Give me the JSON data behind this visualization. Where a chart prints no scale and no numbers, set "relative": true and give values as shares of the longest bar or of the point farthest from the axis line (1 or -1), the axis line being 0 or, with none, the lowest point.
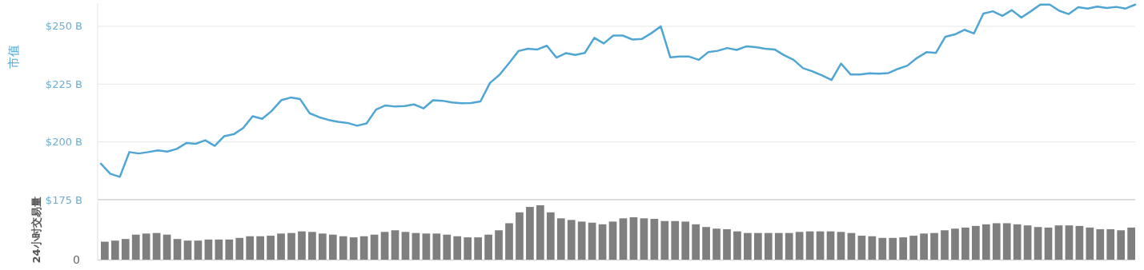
{
  "chart_data": [
    {
      "type": "line",
      "ylabel": "市值",
      "ylim": [
        175,
        260
      ],
      "yticks": [
        {
          "value": 175,
          "label": "$175 B"
        },
        {
          "value": 200,
          "label": "$200 B"
        },
        {
          "value": 225,
          "label": "$225 B"
        },
        {
          "value": 250,
          "label": "$250 B"
        }
      ],
      "grid": "y",
      "tick_labels": "y",
      "marker": "none",
      "line_style": "solid",
      "categories": [
        null,
        null,
        null,
        null,
        null,
        null,
        null,
        null,
        null,
        null,
        null,
        null,
        null,
        null,
        null,
        null,
        null,
        null,
        null,
        null,
        null,
        null,
        null,
        null,
        null,
        null,
        null,
        null,
        null,
        null,
        null,
        null,
        null,
        null,
        null,
        null,
        null,
        null,
        null,
        null,
        null,
        null,
        null,
        null,
        null,
        null,
        null,
        null,
        null,
        null,
        null,
        null,
        null,
        null,
        null,
        null,
        null,
        null,
        null,
        null,
        null,
        null,
        null,
        null,
        null,
        null,
        null,
        null,
        null,
        null,
        null,
        null,
        null,
        null,
        null,
        null,
        null,
        null,
        null,
        null,
        null,
        null,
        null,
        null,
        null,
        null,
        null,
        null,
        null,
        null,
        null,
        null,
        null,
        null,
        null,
        null,
        null,
        null,
        null,
        null,
        null,
        null,
        null,
        null,
        null,
        null,
        null,
        null,
        null,
        null
      ],
      "series": [
        {
          "color": "#4fa6d4",
          "values": [
            190.6,
            186.2,
            184.9,
            195.6,
            195,
            195.6,
            196.3,
            195.8,
            197,
            199.5,
            199.2,
            200.7,
            198.3,
            202.5,
            203.3,
            206,
            211.1,
            210,
            213.4,
            218,
            219.2,
            218.5,
            212.4,
            210.7,
            209.5,
            208.7,
            208.2,
            207,
            208,
            214,
            215.8,
            215.3,
            215.5,
            216.2,
            214.5,
            218,
            217.8,
            217.1,
            216.7,
            216.8,
            217.5,
            225.5,
            229,
            234,
            239.3,
            240.3,
            240,
            241.6,
            236.5,
            238.4,
            237.6,
            238.5,
            245,
            242.6,
            246,
            246,
            244.3,
            244.5,
            247,
            250,
            236.6,
            236.9,
            236.9,
            235.5,
            238.8,
            239.4,
            240.6,
            239.8,
            241.3,
            241,
            240.3,
            240,
            237.5,
            235.5,
            231.9,
            230.5,
            228.8,
            226.8,
            233.9,
            229.2,
            229.2,
            229.7,
            229.5,
            229.8,
            231.6,
            233,
            236.3,
            238.8,
            238.5,
            245.5,
            246.5,
            248.5,
            246.9,
            255.5,
            256.5,
            254.5,
            257,
            253.8,
            256.5,
            259.4,
            259.4,
            256.7,
            255.3,
            258.3,
            257.7,
            258.5,
            257.9,
            258.4,
            257.7,
            259.4
          ]
        }
      ]
    },
    {
      "type": "bar",
      "ylabel": "24小时交易量",
      "relative": true,
      "annotations": [
        "0"
      ],
      "categories": [
        null,
        null,
        null,
        null,
        null,
        null,
        null,
        null,
        null,
        null,
        null,
        null,
        null,
        null,
        null,
        null,
        null,
        null,
        null,
        null,
        null,
        null,
        null,
        null,
        null,
        null,
        null,
        null,
        null,
        null,
        null,
        null,
        null,
        null,
        null,
        null,
        null,
        null,
        null,
        null,
        null,
        null,
        null,
        null,
        null,
        null,
        null,
        null,
        null,
        null,
        null,
        null,
        null,
        null,
        null,
        null,
        null,
        null,
        null,
        null,
        null,
        null,
        null,
        null,
        null,
        null,
        null,
        null,
        null,
        null,
        null,
        null,
        null,
        null,
        null,
        null,
        null,
        null,
        null,
        null,
        null,
        null,
        null,
        null,
        null,
        null,
        null,
        null,
        null,
        null,
        null,
        null,
        null,
        null,
        null,
        null,
        null,
        null,
        null,
        null
      ],
      "series": [
        {
          "color": "#7f7f7f",
          "values": [
            0.33,
            0.35,
            0.38,
            0.46,
            0.48,
            0.49,
            0.46,
            0.38,
            0.35,
            0.35,
            0.37,
            0.37,
            0.37,
            0.4,
            0.43,
            0.43,
            0.44,
            0.48,
            0.49,
            0.52,
            0.51,
            0.48,
            0.46,
            0.43,
            0.41,
            0.43,
            0.46,
            0.51,
            0.54,
            0.51,
            0.49,
            0.48,
            0.48,
            0.46,
            0.43,
            0.41,
            0.41,
            0.46,
            0.54,
            0.67,
            0.87,
            0.97,
            1,
            0.87,
            0.76,
            0.73,
            0.7,
            0.68,
            0.65,
            0.7,
            0.76,
            0.78,
            0.76,
            0.75,
            0.71,
            0.71,
            0.7,
            0.65,
            0.6,
            0.57,
            0.56,
            0.52,
            0.49,
            0.49,
            0.49,
            0.49,
            0.49,
            0.51,
            0.52,
            0.52,
            0.52,
            0.51,
            0.49,
            0.44,
            0.43,
            0.4,
            0.4,
            0.41,
            0.44,
            0.48,
            0.49,
            0.54,
            0.57,
            0.59,
            0.62,
            0.65,
            0.67,
            0.67,
            0.65,
            0.63,
            0.6,
            0.59,
            0.63,
            0.63,
            0.62,
            0.59,
            0.56,
            0.56,
            0.54,
            0.59
          ]
        }
      ]
    }
  ]
}
